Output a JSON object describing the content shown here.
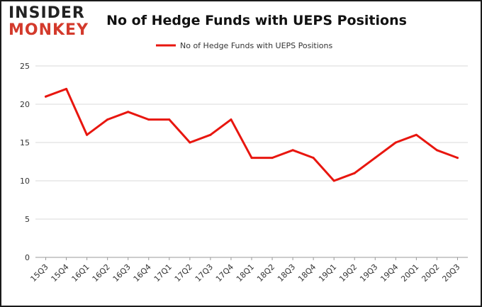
{
  "logo": {
    "line1_a": "INSIDER",
    "line2": "MONKEY"
  },
  "chart_data": {
    "type": "line",
    "title": "No of Hedge Funds with UEPS Positions",
    "categories": [
      "15Q3",
      "15Q4",
      "16Q1",
      "16Q2",
      "16Q3",
      "16Q4",
      "17Q1",
      "17Q2",
      "17Q3",
      "17Q4",
      "18Q1",
      "18Q2",
      "18Q3",
      "18Q4",
      "19Q1",
      "19Q2",
      "19Q3",
      "19Q4",
      "20Q1",
      "20Q2",
      "20Q3"
    ],
    "series": [
      {
        "name": "No of Hedge Funds with UEPS Positions",
        "values": [
          21,
          22,
          16,
          18,
          19,
          18,
          18,
          15,
          16,
          18,
          13,
          13,
          14,
          13,
          10,
          11,
          13,
          15,
          16,
          14,
          13
        ]
      }
    ],
    "ylim": [
      0,
      25
    ],
    "yticks": [
      0,
      5,
      10,
      15,
      20,
      25
    ],
    "grid": true,
    "legend": "top-center",
    "line_color": "#e8160f",
    "grid_color": "#d9d9d9"
  }
}
